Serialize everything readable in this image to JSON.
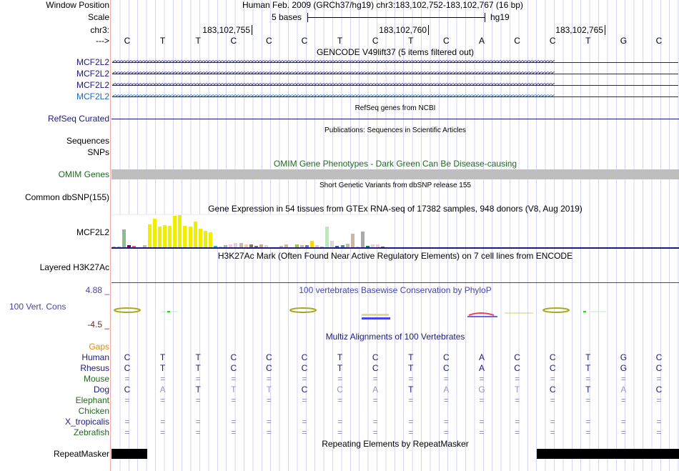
{
  "header": {
    "window_position_label": "Window Position",
    "assembly": "Human Feb. 2009 (GRCh37/hg19)   chr3:183,102,752-183,102,767 (16 bp)",
    "scale_label": "Scale",
    "scale_text": "5 bases",
    "scale_db": "hg19",
    "chr_label": "chr3:",
    "ticks": [
      "183,102,755",
      "183,102,760",
      "183,102,765"
    ],
    "strand_label": "--->"
  },
  "sequence": [
    "C",
    "T",
    "T",
    "C",
    "C",
    "C",
    "T",
    "C",
    "T",
    "C",
    "A",
    "C",
    "C",
    "T",
    "G",
    "C"
  ],
  "gencode": {
    "title": "GENCODE V49lift37 (5 items filtered out)",
    "genes": [
      "MCF2L2",
      "MCF2L2",
      "MCF2L2",
      "MCF2L2"
    ]
  },
  "refseq": {
    "title": "RefSeq genes from NCBI",
    "label": "RefSeq Curated"
  },
  "publications": {
    "title": "Publications: Sequences in Scientific Articles",
    "labels": [
      "Sequences",
      "SNPs"
    ]
  },
  "omim": {
    "title": "OMIM Gene Phenotypes - Dark Green Can Be Disease-causing",
    "label": "OMIM Genes"
  },
  "dbsnp": {
    "title": "Short Genetic Variants from dbSNP release 155",
    "label": "Common dbSNP(155)"
  },
  "gtex": {
    "title": "Gene Expression in 54 tissues from GTEx RNA-seq of 17382 samples, 948 donors (V8, Aug 2019)",
    "label": "MCF2L2",
    "values": [
      3,
      3,
      75,
      10,
      7,
      0,
      10,
      96,
      120,
      88,
      93,
      90,
      132,
      135,
      90,
      87,
      108,
      78,
      69,
      63,
      5,
      3,
      9,
      12,
      17,
      17,
      12,
      11,
      6,
      13,
      8,
      0,
      0,
      6,
      13,
      0,
      12,
      8,
      9,
      28,
      9,
      3,
      87,
      27,
      6,
      8,
      14,
      56,
      3,
      66,
      5,
      11,
      13,
      3
    ],
    "colors": [
      "#ff9933",
      "#ff9933",
      "#8fbc8f",
      "#800040",
      "#ff5555",
      "#ffaa99",
      "#cdb79e",
      "#eeee00",
      "#eeee00",
      "#eeee00",
      "#eeee00",
      "#eeee00",
      "#eeee00",
      "#eeee00",
      "#eeee00",
      "#eeee00",
      "#eeee00",
      "#eeee00",
      "#eeee00",
      "#eeee00",
      "#00cccc",
      "#ffaaff",
      "#99bbcc",
      "#f4cccc",
      "#eecccc",
      "#cdb79e",
      "#ffcc99",
      "#8b7355",
      "#8b7355",
      "#cdaa7d",
      "#eecccc",
      "#eeeeee",
      "#eeeeee",
      "#cdb79e",
      "#cdb79e",
      "#eeeeee",
      "#99cc33",
      "#cdb79e",
      "#7a67ee",
      "#ffd700",
      "#ffb6c1",
      "#cdaa7d",
      "#b4eeb4",
      "#d9d9d9",
      "#3a5fcd",
      "#1e90ff",
      "#cdb79e",
      "#cdb79e",
      "#eecccc",
      "#aaaaaa",
      "#008b45",
      "#f4cccc",
      "#eecccc",
      "#ee00ee"
    ]
  },
  "h3k27ac": {
    "title": "H3K27Ac Mark (Often Found Near Active Regulatory Elements) on 7 cell lines from ENCODE",
    "label": "Layered H3K27Ac"
  },
  "phylop": {
    "title": "100 vertebrates Basewise Conservation by PhyloP",
    "label": "100 Vert. Cons",
    "max": "4.88 _",
    "min": "-4.5 _"
  },
  "multiz": {
    "title": "Multiz Alignments of 100 Vertebrates",
    "gaps_label": "Gaps",
    "species": [
      {
        "name": "Human",
        "seq": [
          "C",
          "T",
          "T",
          "C",
          "C",
          "C",
          "T",
          "C",
          "T",
          "C",
          "A",
          "C",
          "C",
          "T",
          "G",
          "C"
        ]
      },
      {
        "name": "Rhesus",
        "seq": [
          "C",
          "T",
          "T",
          "C",
          "C",
          "C",
          "T",
          "C",
          "T",
          "C",
          "A",
          "C",
          "C",
          "T",
          "G",
          "C"
        ]
      },
      {
        "name": "Mouse",
        "seq": [
          "=",
          "=",
          "=",
          "=",
          "=",
          "=",
          "=",
          "=",
          "=",
          "=",
          "=",
          "=",
          "=",
          "=",
          "=",
          "="
        ]
      },
      {
        "name": "Dog",
        "seq": [
          "C",
          "A",
          "T",
          "T",
          "T",
          "C",
          "C",
          "A",
          "T",
          "A",
          "G",
          "T",
          "C",
          "T",
          "A",
          "C"
        ]
      },
      {
        "name": "Elephant",
        "seq": [
          "=",
          "=",
          "=",
          "=",
          "=",
          "=",
          "=",
          "=",
          "=",
          "=",
          "=",
          "=",
          "=",
          "=",
          "=",
          "="
        ]
      },
      {
        "name": "Chicken",
        "seq": []
      },
      {
        "name": "X_tropicalis",
        "seq": [
          "=",
          "=",
          "=",
          "=",
          "=",
          "=",
          "=",
          "=",
          "=",
          "=",
          "=",
          "=",
          "=",
          "=",
          "=",
          "="
        ]
      },
      {
        "name": "Zebrafish",
        "seq": [
          "=",
          "=",
          "=",
          "=",
          "=",
          "=",
          "=",
          "=",
          "=",
          "=",
          "=",
          "=",
          "=",
          "=",
          "=",
          "="
        ]
      }
    ]
  },
  "repeatmasker": {
    "title": "Repeating Elements by RepeatMasker",
    "label": "RepeatMasker"
  },
  "colors": {
    "navy": "#1a1a7a",
    "green": "#1e6b1e",
    "orange": "#ee8800",
    "phylop": "#4444aa"
  }
}
